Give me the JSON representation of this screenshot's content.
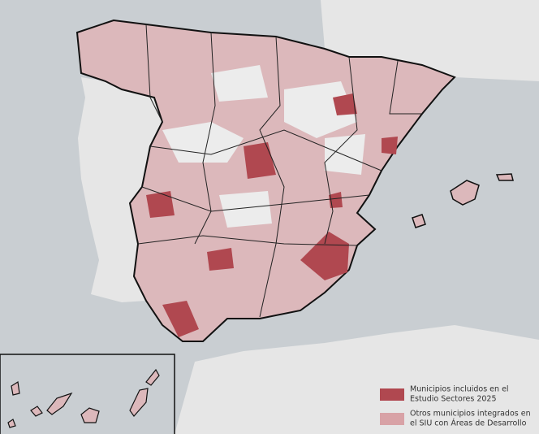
{
  "legend": {
    "items": [
      {
        "lines": [
          "Municipios incluidos en el",
          "Estudio Sectores 2025"
        ],
        "color": "#b04850"
      },
      {
        "lines": [
          "Otros municipios integrados en",
          "el SIU con Áreas de Desarrollo"
        ],
        "color": "#d8a2a6"
      }
    ]
  }
}
